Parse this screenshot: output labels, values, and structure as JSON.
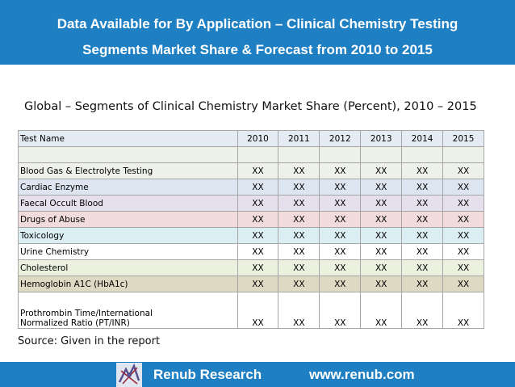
{
  "header": {
    "line1": "Data Available for By Application – Clinical Chemistry Testing",
    "line2": "Segments Market Share & Forecast from 2010 to 2015"
  },
  "subtitle": "Global – Segments of Clinical Chemistry Market Share (Percent), 2010 – 2015",
  "table": {
    "columns": [
      "Test Name",
      "2010",
      "2011",
      "2012",
      "2013",
      "2014",
      "2015"
    ],
    "rows": [
      {
        "name": "Blood Gas & Electrolyte Testing",
        "values": [
          "XX",
          "XX",
          "XX",
          "XX",
          "XX",
          "XX"
        ]
      },
      {
        "name": "Cardiac Enzyme",
        "values": [
          "XX",
          "XX",
          "XX",
          "XX",
          "XX",
          "XX"
        ]
      },
      {
        "name": "Faecal Occult Blood",
        "values": [
          "XX",
          "XX",
          "XX",
          "XX",
          "XX",
          "XX"
        ]
      },
      {
        "name": "Drugs of Abuse",
        "values": [
          "XX",
          "XX",
          "XX",
          "XX",
          "XX",
          "XX"
        ]
      },
      {
        "name": "Toxicology",
        "values": [
          "XX",
          "XX",
          "XX",
          "XX",
          "XX",
          "XX"
        ]
      },
      {
        "name": "Urine Chemistry",
        "values": [
          "XX",
          "XX",
          "XX",
          "XX",
          "XX",
          "XX"
        ]
      },
      {
        "name": "Cholesterol",
        "values": [
          "XX",
          "XX",
          "XX",
          "XX",
          "XX",
          "XX"
        ]
      },
      {
        "name": "Hemoglobin A1C (HbA1c)",
        "values": [
          "XX",
          "XX",
          "XX",
          "XX",
          "XX",
          "XX"
        ]
      },
      {
        "name_line1": "Prothrombin Time/International",
        "name_line2": "Normalized Ratio (PT/INR)",
        "values": [
          "XX",
          "XX",
          "XX",
          "XX",
          "XX",
          "XX"
        ]
      }
    ]
  },
  "source": "Source: Given in the report",
  "footer": {
    "brand": "Renub Research",
    "url": "www.renub.com"
  },
  "colors": {
    "header_bg": "#1e7fc3",
    "footer_bg": "#1e7fc3"
  }
}
